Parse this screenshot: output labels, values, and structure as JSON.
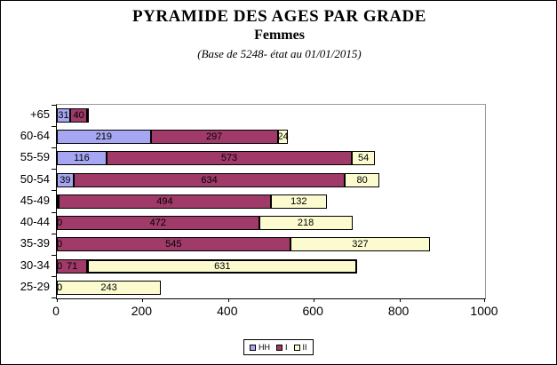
{
  "title": "PYRAMIDE DES AGES PAR GRADE",
  "subtitle": "Femmes",
  "note": "(Base de 5248- état au 01/01/2015)",
  "colors": {
    "series_hh": "#A6A6F2",
    "series_i": "#A03A68",
    "series_ii": "#FBFBCF",
    "bar_border": "#000000",
    "plot_frame": "#9A9A9A",
    "background": "#FFFFFF"
  },
  "chart_data": {
    "type": "bar",
    "orientation": "horizontal",
    "stacked": true,
    "title": "PYRAMIDE DES AGES PAR GRADE",
    "subtitle": "Femmes",
    "annotation": "(Base de 5248- état au 01/01/2015)",
    "categories": [
      "+65",
      "60-64",
      "55-59",
      "50-54",
      "45-49",
      "40-44",
      "35-39",
      "30-34",
      "25-29"
    ],
    "series": [
      {
        "name": "HH",
        "color": "#A6A6F2",
        "values": [
          31,
          219,
          116,
          39,
          5,
          0,
          0,
          0,
          0
        ]
      },
      {
        "name": "I",
        "color": "#A03A68",
        "values": [
          40,
          297,
          573,
          634,
          494,
          472,
          545,
          71,
          0
        ]
      },
      {
        "name": "II",
        "color": "#FBFBCF",
        "values": [
          3,
          24,
          54,
          80,
          132,
          218,
          327,
          631,
          243
        ]
      }
    ],
    "visible_value_labels": {
      "+65": [
        31,
        40
      ],
      "60-64": [
        219,
        297,
        24
      ],
      "55-59": [
        116,
        573,
        54
      ],
      "50-54": [
        39,
        634,
        80
      ],
      "45-49": [
        494,
        132
      ],
      "40-44": [
        0,
        472,
        218
      ],
      "35-39": [
        0,
        545,
        327
      ],
      "30-34": [
        0,
        71,
        631
      ],
      "25-29": [
        0,
        243
      ]
    },
    "xlabel": "",
    "ylabel": "",
    "xlim": [
      0,
      1000
    ],
    "xticks": [
      0,
      200,
      400,
      600,
      800,
      1000
    ],
    "grid": false,
    "legend_position": "bottom",
    "legend_labels": [
      "HH",
      "I",
      "II"
    ],
    "emphasized_segment": {
      "category": "30-34",
      "series": "II"
    }
  }
}
